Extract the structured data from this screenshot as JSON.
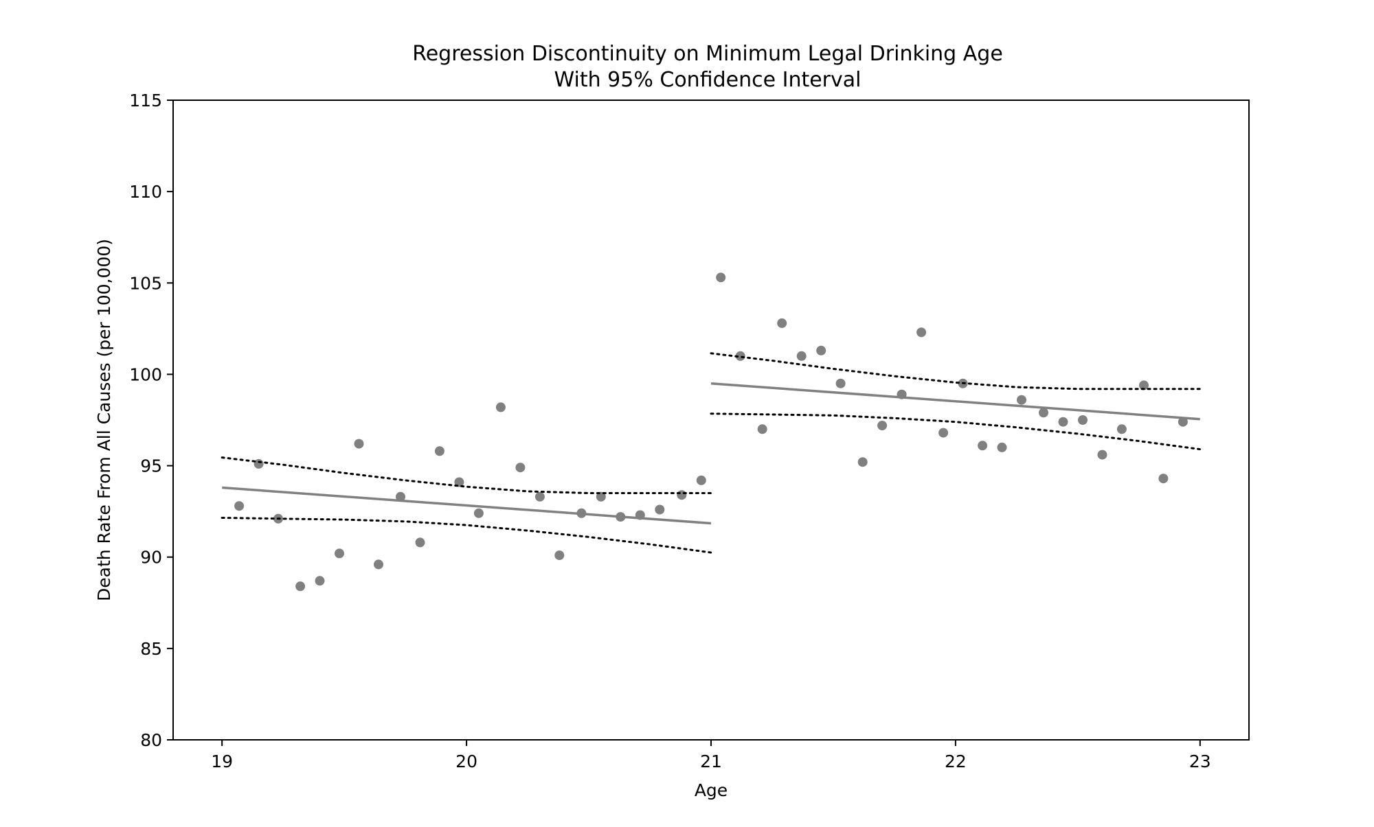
{
  "chart_data": {
    "type": "scatter",
    "title": "Regression Discontinuity on Minimum Legal Drinking Age",
    "subtitle": "With 95% Confidence Interval",
    "xlabel": "Age",
    "ylabel": "Death Rate From All Causes (per 100,000)",
    "xlim": [
      18.8,
      23.2
    ],
    "ylim": [
      80,
      115
    ],
    "xticks": [
      19,
      20,
      21,
      22,
      23
    ],
    "yticks": [
      80,
      85,
      90,
      95,
      100,
      105,
      110,
      115
    ],
    "grid": false,
    "legend": "none",
    "colors": {
      "points": "#808080",
      "fit_line": "#808080",
      "ci_line": "#000000",
      "axes": "#000000"
    },
    "series": [
      {
        "kind": "points",
        "x": [
          19.07,
          19.15,
          19.23,
          19.32,
          19.4,
          19.48,
          19.56,
          19.64,
          19.73,
          19.81,
          19.89,
          19.97,
          20.05,
          20.14,
          20.22,
          20.3,
          20.38,
          20.47,
          20.55,
          20.63,
          20.71,
          20.79,
          20.88,
          20.96,
          21.04,
          21.12,
          21.21,
          21.29,
          21.37,
          21.45,
          21.53,
          21.62,
          21.7,
          21.78,
          21.86,
          21.95,
          22.03,
          22.11,
          22.19,
          22.27,
          22.36,
          22.44,
          22.52,
          22.6,
          22.68,
          22.77,
          22.85,
          22.93
        ],
        "y": [
          92.8,
          95.1,
          92.1,
          88.4,
          88.7,
          90.2,
          96.2,
          89.6,
          93.3,
          90.8,
          95.8,
          94.1,
          92.4,
          98.2,
          94.9,
          93.3,
          90.1,
          92.4,
          93.3,
          92.2,
          92.3,
          92.6,
          93.4,
          94.2,
          105.3,
          101.0,
          97.0,
          102.8,
          101.0,
          101.3,
          99.5,
          95.2,
          97.2,
          98.9,
          102.3,
          96.8,
          99.5,
          96.1,
          96.0,
          98.6,
          97.9,
          97.4,
          97.5,
          95.6,
          97.0,
          99.4,
          94.3,
          97.4
        ]
      },
      {
        "kind": "fit",
        "segments": [
          {
            "x": [
              19.0,
              21.0
            ],
            "y": [
              93.8,
              91.85
            ]
          },
          {
            "x": [
              21.0,
              23.0
            ],
            "y": [
              99.5,
              97.55
            ]
          }
        ]
      },
      {
        "kind": "ci_upper",
        "segments": [
          {
            "x": [
              19.0,
              19.25,
              19.5,
              19.75,
              20.0,
              20.25,
              20.5,
              20.75,
              21.0
            ],
            "y": [
              95.45,
              95.05,
              94.6,
              94.2,
              93.85,
              93.6,
              93.5,
              93.5,
              93.5
            ]
          },
          {
            "x": [
              21.0,
              21.25,
              21.5,
              21.75,
              22.0,
              22.25,
              22.5,
              22.75,
              23.0
            ],
            "y": [
              101.15,
              100.75,
              100.3,
              99.9,
              99.55,
              99.3,
              99.2,
              99.2,
              99.2
            ]
          }
        ]
      },
      {
        "kind": "ci_lower",
        "segments": [
          {
            "x": [
              19.0,
              19.25,
              19.5,
              19.75,
              20.0,
              20.25,
              20.5,
              20.75,
              21.0
            ],
            "y": [
              92.15,
              92.1,
              92.05,
              91.95,
              91.75,
              91.45,
              91.1,
              90.7,
              90.25
            ]
          },
          {
            "x": [
              21.0,
              21.25,
              21.5,
              21.75,
              22.0,
              22.25,
              22.5,
              22.75,
              23.0
            ],
            "y": [
              97.85,
              97.8,
              97.75,
              97.6,
              97.4,
              97.1,
              96.75,
              96.35,
              95.9
            ]
          }
        ]
      }
    ]
  }
}
